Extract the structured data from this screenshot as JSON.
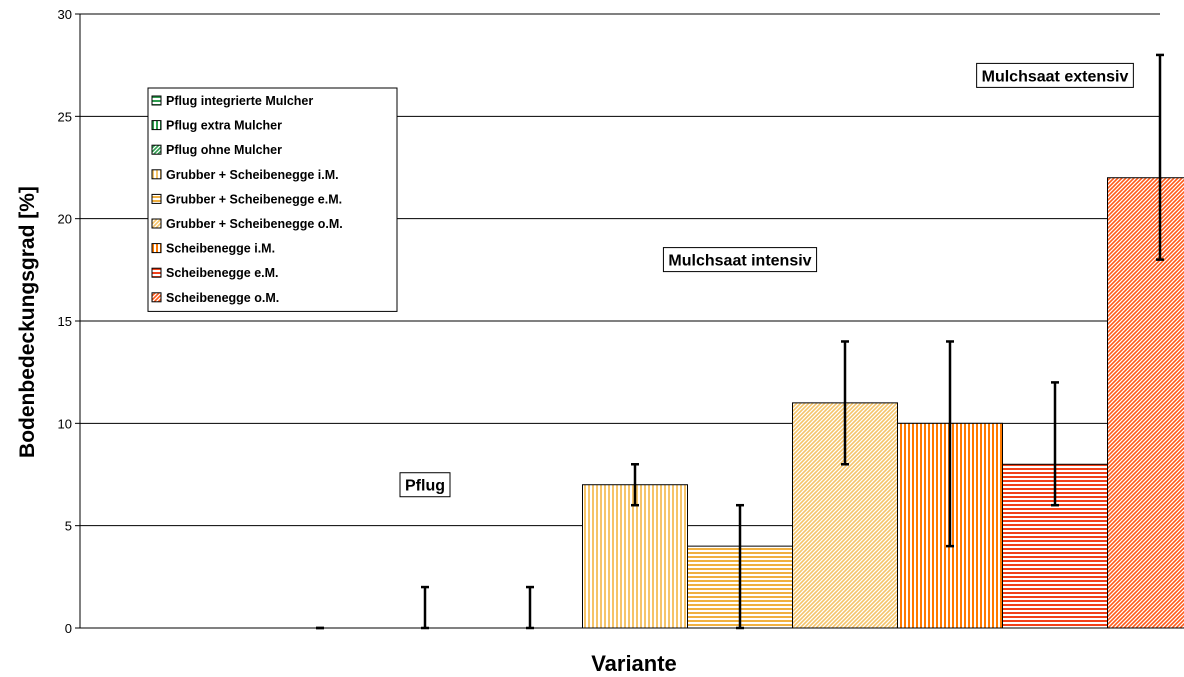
{
  "chart_data": {
    "type": "bar",
    "xlabel": "Variante",
    "ylabel": "Bodenbedeckungsgrad [%]",
    "ylim": [
      0,
      30
    ],
    "yticks": [
      0,
      5,
      10,
      15,
      20,
      25,
      30
    ],
    "grid": true,
    "legend_position": "top-left",
    "series": [
      {
        "name": "Pflug integrierte Mulcher",
        "value": 0,
        "err_low": 0,
        "err_high": 0,
        "color": "#2e9e4f",
        "pattern": "hstripe"
      },
      {
        "name": "Pflug extra Mulcher",
        "value": 0,
        "err_low": 0,
        "err_high": 2,
        "color": "#2e9e4f",
        "pattern": "vstripe"
      },
      {
        "name": "Pflug ohne Mulcher",
        "value": 0,
        "err_low": 0,
        "err_high": 2,
        "color": "#2e9e4f",
        "pattern": "diag"
      },
      {
        "name": "Grubber + Scheibenegge i.M.",
        "value": 7,
        "err_low": 6,
        "err_high": 8,
        "color": "#f5c46a",
        "pattern": "vstripe"
      },
      {
        "name": "Grubber + Scheibenegge e.M.",
        "value": 4,
        "err_low": 0,
        "err_high": 6,
        "color": "#f0b040",
        "pattern": "hstripe"
      },
      {
        "name": "Grubber + Scheibenegge o.M.",
        "value": 11,
        "err_low": 8,
        "err_high": 14,
        "color": "#f5c46a",
        "pattern": "diag"
      },
      {
        "name": "Scheibenegge i.M.",
        "value": 10,
        "err_low": 4,
        "err_high": 14,
        "color": "#ff7a00",
        "pattern": "vstripe"
      },
      {
        "name": "Scheibenegge e.M.",
        "value": 8,
        "err_low": 6,
        "err_high": 12,
        "color": "#f2401a",
        "pattern": "hstripe"
      },
      {
        "name": "Scheibenegge o.M.",
        "value": 22,
        "err_low": 18,
        "err_high": 28,
        "color": "#ff5a1a",
        "pattern": "diag"
      }
    ],
    "annotations": [
      {
        "text": "Pflug",
        "x_index": 1,
        "y": 7
      },
      {
        "text": "Mulchsaat intensiv",
        "x_index": 4,
        "y": 18
      },
      {
        "text": "Mulchsaat extensiv",
        "x_index": 7,
        "y": 27
      }
    ]
  }
}
